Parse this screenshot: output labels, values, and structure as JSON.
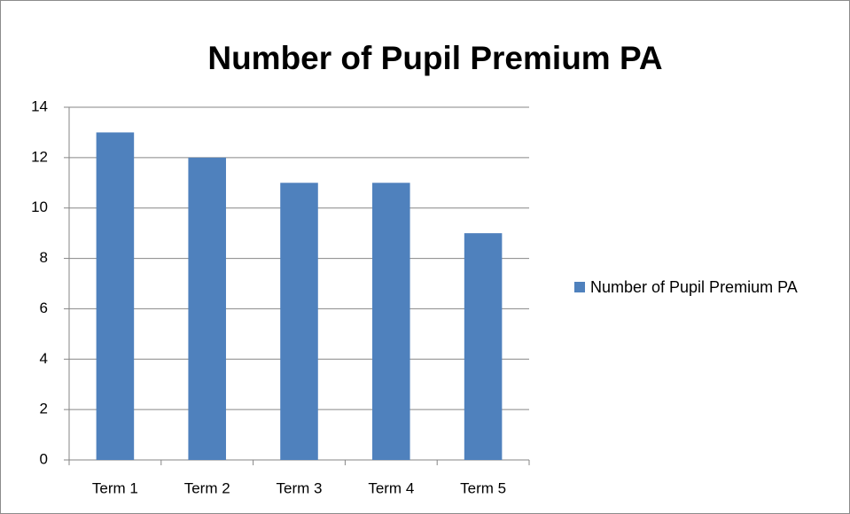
{
  "chart_data": {
    "type": "bar",
    "title": "Number of Pupil Premium  PA",
    "categories": [
      "Term 1",
      "Term 2",
      "Term 3",
      "Term 4",
      "Term 5"
    ],
    "series": [
      {
        "name": "Number of Pupil Premium PA",
        "color": "#4f81bd",
        "values": [
          13,
          12,
          11,
          11,
          9
        ]
      }
    ],
    "ylim": [
      0,
      14
    ],
    "yticks": [
      0,
      2,
      4,
      6,
      8,
      10,
      12,
      14
    ],
    "grid": true,
    "legend": "right"
  }
}
